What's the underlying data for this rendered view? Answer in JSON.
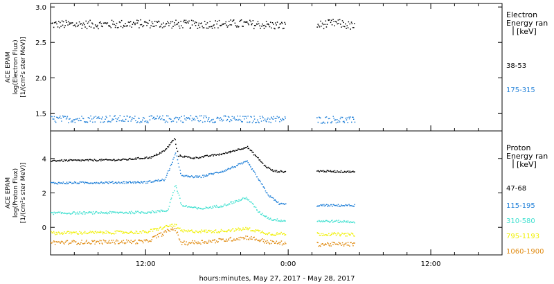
{
  "xaxis": {
    "label": "hours:minutes, May 27, 2017 - May 28, 2017",
    "ticks": [
      {
        "hour": 12,
        "label": "12:00"
      },
      {
        "hour": 24,
        "label": "0:00"
      },
      {
        "hour": 36,
        "label": "12:00"
      }
    ],
    "range_hours": [
      4,
      42
    ]
  },
  "chart_data": [
    {
      "type": "scatter",
      "title": "",
      "ylabel_lines": [
        "ACE EPAM",
        "log(Electron Flux)",
        "[1/(cm²s ster MeV)]"
      ],
      "ylim": [
        1.25,
        3.05
      ],
      "yticks": [
        {
          "v": 1.5,
          "label": "1.5"
        },
        {
          "v": 2.0,
          "label": "2.0"
        },
        {
          "v": 2.5,
          "label": "2.5"
        },
        {
          "v": 3.0,
          "label": "3.0"
        }
      ],
      "legend_title": [
        "Electron",
        "Energy ran",
        "[keV]"
      ],
      "x_segments": [
        [
          4.0,
          23.8
        ],
        [
          26.4,
          29.6
        ]
      ],
      "series": [
        {
          "name": "38-53",
          "color": "#000000",
          "points": [
            {
              "x": 4,
              "y": 2.76
            },
            {
              "x": 8,
              "y": 2.76
            },
            {
              "x": 12,
              "y": 2.77
            },
            {
              "x": 16,
              "y": 2.76
            },
            {
              "x": 20,
              "y": 2.77
            },
            {
              "x": 23.8,
              "y": 2.74
            },
            {
              "x": 26.4,
              "y": 2.75
            },
            {
              "x": 28,
              "y": 2.78
            },
            {
              "x": 29.6,
              "y": 2.73
            }
          ],
          "scatter": 0.06
        },
        {
          "name": "175-315",
          "color": "#1e7fd8",
          "points": [
            {
              "x": 4,
              "y": 1.42
            },
            {
              "x": 8,
              "y": 1.43
            },
            {
              "x": 12,
              "y": 1.42
            },
            {
              "x": 16,
              "y": 1.43
            },
            {
              "x": 20,
              "y": 1.42
            },
            {
              "x": 23.8,
              "y": 1.42
            },
            {
              "x": 26.4,
              "y": 1.41
            },
            {
              "x": 28,
              "y": 1.42
            },
            {
              "x": 29.6,
              "y": 1.4
            }
          ],
          "scatter": 0.05
        }
      ]
    },
    {
      "type": "scatter",
      "title": "",
      "ylabel_lines": [
        "ACE EPAM",
        "log(Proton Flux)",
        "[1/(cm²s ster MeV)]"
      ],
      "ylim": [
        -1.6,
        5.6
      ],
      "yticks": [
        {
          "v": 0,
          "label": "0"
        },
        {
          "v": 2,
          "label": "2"
        },
        {
          "v": 4,
          "label": "4"
        }
      ],
      "legend_title": [
        "Proton",
        "Energy ran",
        "[keV]"
      ],
      "x_segments": [
        [
          4.0,
          23.8
        ],
        [
          26.4,
          29.6
        ]
      ],
      "series": [
        {
          "name": "47-68",
          "color": "#000000",
          "points": [
            {
              "x": 4,
              "y": 3.9
            },
            {
              "x": 10,
              "y": 3.95
            },
            {
              "x": 12.5,
              "y": 4.1
            },
            {
              "x": 13.6,
              "y": 4.5
            },
            {
              "x": 14.4,
              "y": 5.2
            },
            {
              "x": 14.7,
              "y": 4.2
            },
            {
              "x": 16,
              "y": 4.05
            },
            {
              "x": 18.5,
              "y": 4.3
            },
            {
              "x": 20.5,
              "y": 4.7
            },
            {
              "x": 21.2,
              "y": 4.2
            },
            {
              "x": 22,
              "y": 3.6
            },
            {
              "x": 22.7,
              "y": 3.3
            },
            {
              "x": 23.8,
              "y": 3.25
            },
            {
              "x": 26.4,
              "y": 3.3
            },
            {
              "x": 29.6,
              "y": 3.25
            }
          ],
          "scatter": 0.05
        },
        {
          "name": "115-195",
          "color": "#1e7fd8",
          "points": [
            {
              "x": 4,
              "y": 2.6
            },
            {
              "x": 12,
              "y": 2.65
            },
            {
              "x": 13.6,
              "y": 2.8
            },
            {
              "x": 14.5,
              "y": 4.3
            },
            {
              "x": 15,
              "y": 3.0
            },
            {
              "x": 16.5,
              "y": 2.95
            },
            {
              "x": 18.5,
              "y": 3.3
            },
            {
              "x": 20.5,
              "y": 3.85
            },
            {
              "x": 21.3,
              "y": 3.0
            },
            {
              "x": 22.3,
              "y": 1.9
            },
            {
              "x": 23.2,
              "y": 1.4
            },
            {
              "x": 23.8,
              "y": 1.35
            },
            {
              "x": 26.4,
              "y": 1.3
            },
            {
              "x": 29.6,
              "y": 1.3
            }
          ],
          "scatter": 0.06
        },
        {
          "name": "310-580",
          "color": "#40e0d0",
          "points": [
            {
              "x": 4,
              "y": 0.85
            },
            {
              "x": 12,
              "y": 0.9
            },
            {
              "x": 13.8,
              "y": 1.0
            },
            {
              "x": 14.5,
              "y": 2.5
            },
            {
              "x": 15,
              "y": 1.3
            },
            {
              "x": 16.5,
              "y": 1.1
            },
            {
              "x": 18.5,
              "y": 1.3
            },
            {
              "x": 20.5,
              "y": 1.75
            },
            {
              "x": 21.5,
              "y": 0.9
            },
            {
              "x": 22.5,
              "y": 0.5
            },
            {
              "x": 23.8,
              "y": 0.4
            },
            {
              "x": 26.4,
              "y": 0.4
            },
            {
              "x": 29.6,
              "y": 0.35
            }
          ],
          "scatter": 0.07
        },
        {
          "name": "795-1193",
          "color": "#f0f000",
          "points": [
            {
              "x": 4,
              "y": -0.3
            },
            {
              "x": 12,
              "y": -0.25
            },
            {
              "x": 14.4,
              "y": 0.2
            },
            {
              "x": 15,
              "y": -0.2
            },
            {
              "x": 18,
              "y": -0.2
            },
            {
              "x": 20.5,
              "y": -0.05
            },
            {
              "x": 22.5,
              "y": -0.35
            },
            {
              "x": 23.8,
              "y": -0.35
            },
            {
              "x": 26.4,
              "y": -0.35
            },
            {
              "x": 29.6,
              "y": -0.4
            }
          ],
          "scatter": 0.09
        },
        {
          "name": "1060-1900",
          "color": "#e08a10",
          "points": [
            {
              "x": 4,
              "y": -0.85
            },
            {
              "x": 12,
              "y": -0.8
            },
            {
              "x": 14.4,
              "y": 0.0
            },
            {
              "x": 15,
              "y": -0.9
            },
            {
              "x": 18,
              "y": -0.75
            },
            {
              "x": 20.5,
              "y": -0.55
            },
            {
              "x": 22.5,
              "y": -0.85
            },
            {
              "x": 23.8,
              "y": -0.9
            },
            {
              "x": 26.4,
              "y": -0.95
            },
            {
              "x": 29.6,
              "y": -0.95
            }
          ],
          "scatter": 0.12
        }
      ]
    }
  ]
}
